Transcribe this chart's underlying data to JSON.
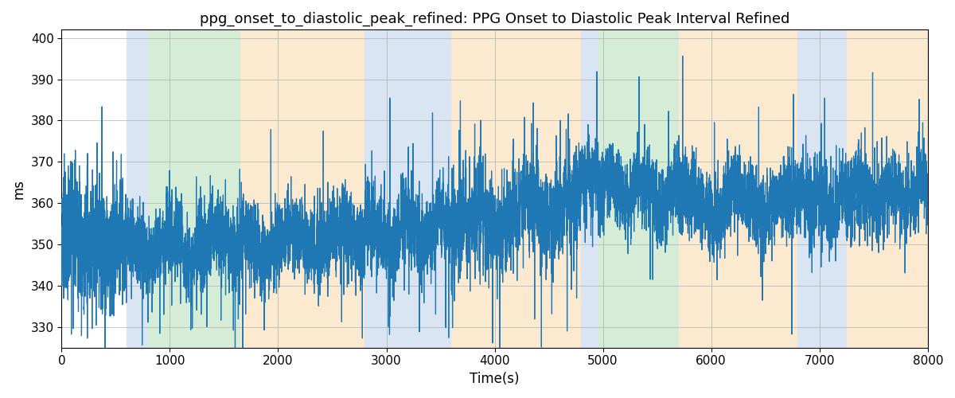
{
  "title": "ppg_onset_to_diastolic_peak_refined: PPG Onset to Diastolic Peak Interval Refined",
  "xlabel": "Time(s)",
  "ylabel": "ms",
  "xlim": [
    0,
    8000
  ],
  "ylim_bottom": 325,
  "ylim_top": 402,
  "yticks": [
    330,
    340,
    350,
    360,
    370,
    380,
    390,
    400
  ],
  "xticks": [
    0,
    1000,
    2000,
    3000,
    4000,
    5000,
    6000,
    7000,
    8000
  ],
  "line_color": "#1f77b4",
  "line_width": 0.9,
  "background_color": "#ffffff",
  "grid_color": "#b0b0b0",
  "bands": [
    {
      "start": 600,
      "end": 800,
      "color": "#aec6e8",
      "alpha": 0.45
    },
    {
      "start": 800,
      "end": 1650,
      "color": "#98d49a",
      "alpha": 0.4
    },
    {
      "start": 1650,
      "end": 2800,
      "color": "#f5c98a",
      "alpha": 0.4
    },
    {
      "start": 2800,
      "end": 3600,
      "color": "#aec6e8",
      "alpha": 0.45
    },
    {
      "start": 3600,
      "end": 4800,
      "color": "#f5c98a",
      "alpha": 0.4
    },
    {
      "start": 4800,
      "end": 4960,
      "color": "#aec6e8",
      "alpha": 0.45
    },
    {
      "start": 4960,
      "end": 5700,
      "color": "#98d49a",
      "alpha": 0.4
    },
    {
      "start": 5700,
      "end": 6800,
      "color": "#f5c98a",
      "alpha": 0.4
    },
    {
      "start": 6800,
      "end": 7250,
      "color": "#aec6e8",
      "alpha": 0.45
    },
    {
      "start": 7250,
      "end": 8000,
      "color": "#f5c98a",
      "alpha": 0.4
    }
  ],
  "title_fontsize": 13,
  "axis_label_fontsize": 12,
  "tick_fontsize": 11,
  "segments": [
    {
      "t_start": 0,
      "t_end": 600,
      "mean": 352,
      "trend": -4,
      "noise": 8
    },
    {
      "t_start": 600,
      "t_end": 1650,
      "mean": 349,
      "trend": 1,
      "noise": 5
    },
    {
      "t_start": 1650,
      "t_end": 2800,
      "mean": 350,
      "trend": 2,
      "noise": 5
    },
    {
      "t_start": 2800,
      "t_end": 3600,
      "mean": 352,
      "trend": 2,
      "noise": 5
    },
    {
      "t_start": 3600,
      "t_end": 4800,
      "mean": 354,
      "trend": 6,
      "noise": 6
    },
    {
      "t_start": 4800,
      "t_end": 4960,
      "mean": 366,
      "trend": 0,
      "noise": 5
    },
    {
      "t_start": 4960,
      "t_end": 5700,
      "mean": 364,
      "trend": -2,
      "noise": 5
    },
    {
      "t_start": 5700,
      "t_end": 6800,
      "mean": 360,
      "trend": 0,
      "noise": 5
    },
    {
      "t_start": 6800,
      "t_end": 7250,
      "mean": 360,
      "trend": 0,
      "noise": 5
    },
    {
      "t_start": 7250,
      "t_end": 8000,
      "mean": 361,
      "trend": 2,
      "noise": 5
    }
  ]
}
